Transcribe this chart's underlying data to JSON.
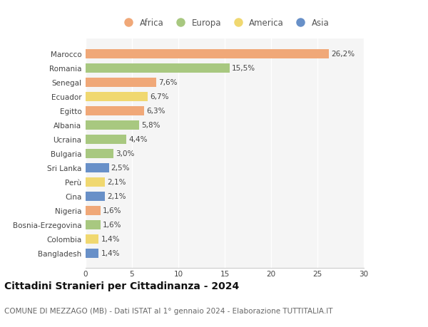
{
  "countries": [
    "Marocco",
    "Romania",
    "Senegal",
    "Ecuador",
    "Egitto",
    "Albania",
    "Ucraina",
    "Bulgaria",
    "Sri Lanka",
    "Perù",
    "Cina",
    "Nigeria",
    "Bosnia-Erzegovina",
    "Colombia",
    "Bangladesh"
  ],
  "values": [
    26.2,
    15.5,
    7.6,
    6.7,
    6.3,
    5.8,
    4.4,
    3.0,
    2.5,
    2.1,
    2.1,
    1.6,
    1.6,
    1.4,
    1.4
  ],
  "labels": [
    "26,2%",
    "15,5%",
    "7,6%",
    "6,7%",
    "6,3%",
    "5,8%",
    "4,4%",
    "3,0%",
    "2,5%",
    "2,1%",
    "2,1%",
    "1,6%",
    "1,6%",
    "1,4%",
    "1,4%"
  ],
  "continents": [
    "Africa",
    "Europa",
    "Africa",
    "America",
    "Africa",
    "Europa",
    "Europa",
    "Europa",
    "Asia",
    "America",
    "Asia",
    "Africa",
    "Europa",
    "America",
    "Asia"
  ],
  "continent_colors": {
    "Africa": "#F0A878",
    "Europa": "#A8C880",
    "America": "#F0D870",
    "Asia": "#6890C8"
  },
  "legend_order": [
    "Africa",
    "Europa",
    "America",
    "Asia"
  ],
  "title": "Cittadini Stranieri per Cittadinanza - 2024",
  "subtitle": "COMUNE DI MEZZAGO (MB) - Dati ISTAT al 1° gennaio 2024 - Elaborazione TUTTITALIA.IT",
  "xlim": [
    0,
    30
  ],
  "xticks": [
    0,
    5,
    10,
    15,
    20,
    25,
    30
  ],
  "bg_color": "#ffffff",
  "plot_bg_color": "#f5f5f5",
  "grid_color": "#ffffff",
  "bar_height": 0.65,
  "label_fontsize": 7.5,
  "tick_fontsize": 7.5,
  "title_fontsize": 10,
  "subtitle_fontsize": 7.5
}
